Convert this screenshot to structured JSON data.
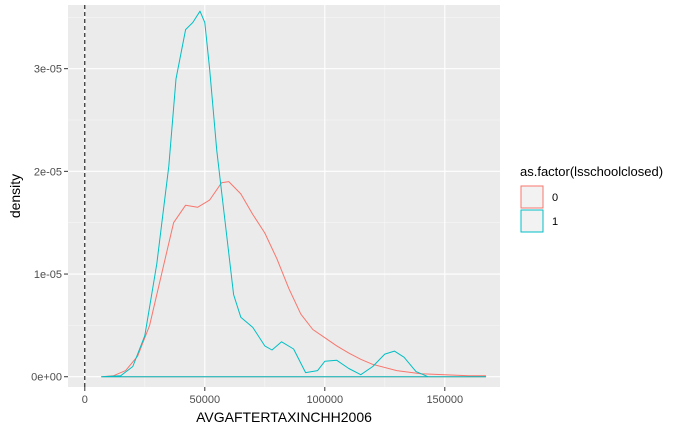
{
  "chart_data": {
    "type": "area",
    "xlabel": "AVGAFTERTAXINCHH2006",
    "ylabel": "density",
    "xlim": [
      -7000,
      173000
    ],
    "ylim": [
      -1e-06,
      3.62e-05
    ],
    "x_ticks": [
      0,
      50000,
      100000,
      150000
    ],
    "x_tick_labels": [
      "0",
      "50000",
      "100000",
      "150000"
    ],
    "y_ticks": [
      0,
      1e-05,
      2e-05,
      3e-05
    ],
    "y_tick_labels": [
      "0e+00",
      "1e-05",
      "2e-05",
      "3e-05"
    ],
    "vline": {
      "x": 0,
      "style": "dashed"
    },
    "grid": true,
    "panel_background": "#ebebeb",
    "legend": {
      "title": "as.factor(lsschoolclosed)",
      "position": "right"
    },
    "series": [
      {
        "name": "0",
        "color": "#F8766D",
        "x": [
          7000,
          12000,
          17000,
          22000,
          27000,
          32000,
          37000,
          42000,
          47000,
          52000,
          57000,
          60000,
          65000,
          70000,
          75000,
          80000,
          85000,
          90000,
          95000,
          100000,
          105000,
          110000,
          115000,
          120000,
          130000,
          140000,
          150000,
          160000,
          167000
        ],
        "y": [
          0,
          1e-07,
          6e-07,
          2e-06,
          5e-06,
          1e-05,
          1.5e-05,
          1.67e-05,
          1.65e-05,
          1.72e-05,
          1.89e-05,
          1.9e-05,
          1.78e-05,
          1.58e-05,
          1.4e-05,
          1.15e-05,
          8.6e-06,
          6.1e-06,
          4.6e-06,
          3.8e-06,
          3e-06,
          2.3e-06,
          1.7e-06,
          1.2e-06,
          6e-07,
          3e-07,
          2e-07,
          1e-07,
          1e-07
        ]
      },
      {
        "name": "1",
        "color": "#00BFC4",
        "x": [
          7000,
          15000,
          20000,
          25000,
          30000,
          35000,
          38000,
          42000,
          45000,
          48000,
          50000,
          52000,
          55000,
          60000,
          62000,
          65000,
          70000,
          75000,
          78000,
          82000,
          87000,
          92000,
          97000,
          100000,
          105000,
          110000,
          115000,
          120000,
          125000,
          129000,
          133000,
          138000,
          143000,
          150000,
          160000,
          167000
        ],
        "y": [
          0,
          1e-07,
          1e-06,
          4e-06,
          1.1e-05,
          2.05e-05,
          2.9e-05,
          3.38e-05,
          3.45e-05,
          3.56e-05,
          3.45e-05,
          3e-05,
          2.2e-05,
          1.2e-05,
          8e-06,
          5.8e-06,
          4.8e-06,
          3e-06,
          2.6e-06,
          3.4e-06,
          2.7e-06,
          4e-07,
          6e-07,
          1.5e-06,
          1.6e-06,
          8e-07,
          2e-07,
          1e-06,
          2.2e-06,
          2.5e-06,
          1.9e-06,
          5e-07,
          0,
          0,
          0,
          0
        ]
      }
    ]
  }
}
